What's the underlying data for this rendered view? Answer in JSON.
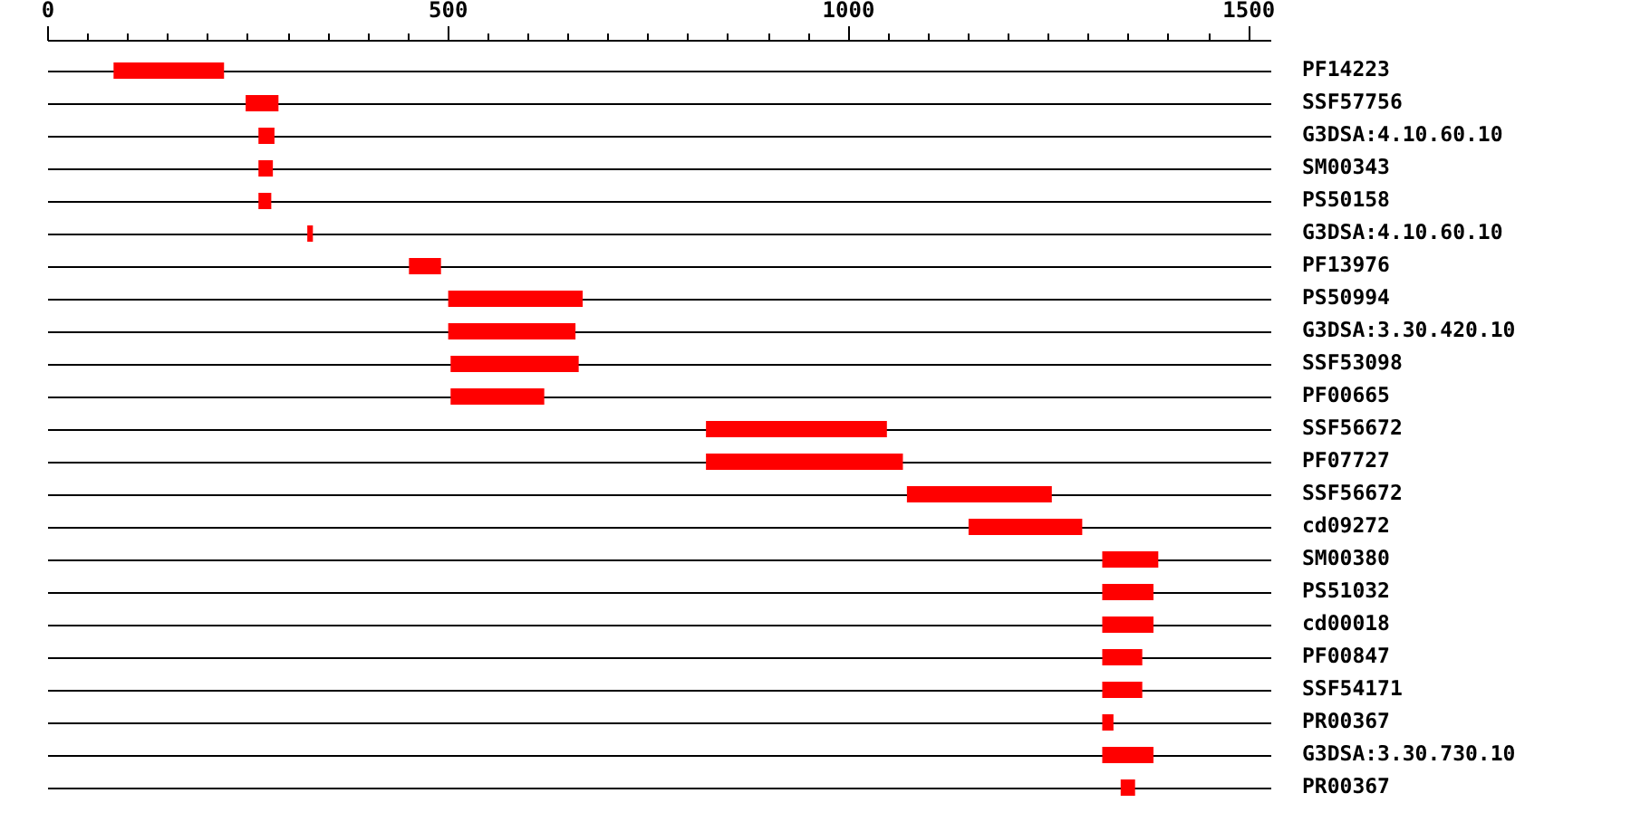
{
  "chart_data": {
    "type": "bar",
    "orientation": "horizontal",
    "categories": [
      "PF14223",
      "SSF57756",
      "G3DSA:4.10.60.10",
      "SM00343",
      "PS50158",
      "G3DSA:4.10.60.10",
      "PF13976",
      "PS50994",
      "G3DSA:3.30.420.10",
      "SSF53098",
      "PF00665",
      "SSF56672",
      "PF07727",
      "SSF56672",
      "cd09272",
      "SM00380",
      "PS51032",
      "cd00018",
      "PF00847",
      "SSF54171",
      "PR00367",
      "G3DSA:3.30.730.10",
      "PR00367"
    ],
    "base": [
      83,
      248,
      264,
      264,
      264,
      325,
      452,
      501,
      501,
      504,
      504,
      823,
      823,
      1074,
      1151,
      1318,
      1318,
      1318,
      1318,
      1318,
      1318,
      1318,
      1341
    ],
    "values": [
      138,
      41,
      20,
      18,
      16,
      7,
      40,
      168,
      159,
      160,
      117,
      226,
      246,
      181,
      142,
      70,
      64,
      64,
      50,
      50,
      14,
      64,
      18
    ],
    "color": "#ff0000",
    "xlim": [
      0,
      1528
    ],
    "xticks": [
      0,
      {
        "value": 50,
        "label": null
      },
      {
        "value": 100,
        "label": null
      },
      {
        "value": 150,
        "label": null
      },
      {
        "value": 200,
        "label": null
      },
      {
        "value": 250,
        "label": null
      },
      {
        "value": 300,
        "label": null
      },
      {
        "value": 350,
        "label": null
      },
      {
        "value": 400,
        "label": null
      },
      {
        "value": 450,
        "label": null
      },
      500,
      {
        "value": 550,
        "label": null
      },
      {
        "value": 600,
        "label": null
      },
      {
        "value": 650,
        "label": null
      },
      {
        "value": 700,
        "label": null
      },
      {
        "value": 750,
        "label": null
      },
      {
        "value": 800,
        "label": null
      },
      {
        "value": 850,
        "label": null
      },
      {
        "value": 900,
        "label": null
      },
      {
        "value": 950,
        "label": null
      },
      1000,
      {
        "value": 1050,
        "label": null
      },
      {
        "value": 1100,
        "label": null
      },
      {
        "value": 1150,
        "label": null
      },
      {
        "value": 1200,
        "label": null
      },
      {
        "value": 1250,
        "label": null
      },
      {
        "value": 1300,
        "label": null
      },
      {
        "value": 1350,
        "label": null
      },
      {
        "value": 1400,
        "label": null
      },
      {
        "value": 1450,
        "label": null
      },
      1500
    ],
    "grid": "y"
  }
}
